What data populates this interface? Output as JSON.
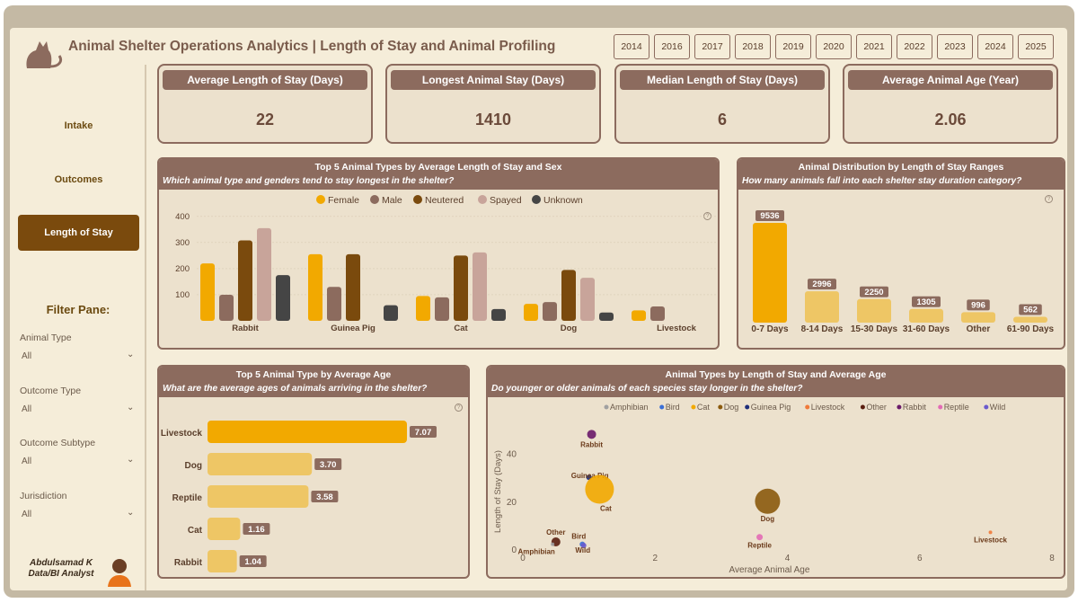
{
  "header": {
    "title": "Animal Shelter Operations Analytics | Length of Stay and Animal Profiling"
  },
  "years": [
    "2014",
    "2016",
    "2017",
    "2018",
    "2019",
    "2020",
    "2021",
    "2022",
    "2023",
    "2024",
    "2025"
  ],
  "nav": {
    "intake": "Intake",
    "outcomes": "Outcomes",
    "length_of_stay": "Length of Stay"
  },
  "filters": {
    "title": "Filter Pane:",
    "items": [
      {
        "label": "Animal Type",
        "value": "All"
      },
      {
        "label": "Outcome Type",
        "value": "All"
      },
      {
        "label": "Outcome Subtype",
        "value": "All"
      },
      {
        "label": "Jurisdiction",
        "value": "All"
      }
    ]
  },
  "author": {
    "name": "Abdulsamad K",
    "role": "Data/BI Analyst"
  },
  "kpis": [
    {
      "title": "Average Length of Stay (Days)",
      "value": "22"
    },
    {
      "title": "Longest Animal Stay (Days)",
      "value": "1410"
    },
    {
      "title": "Median Length of Stay (Days)",
      "value": "6"
    },
    {
      "title": "Average Animal Age (Year)",
      "value": "2.06"
    }
  ],
  "colors": {
    "female": "#f2a900",
    "male": "#8c6b5e",
    "neutered": "#7a4a0d",
    "spayed": "#c8a49a",
    "unknown": "#454545",
    "gold": "#f2a900",
    "light_gold": "#eec665",
    "header": "#8c6b5e"
  },
  "chart_data": [
    {
      "type": "bar",
      "title": "Top 5 Animal Types by Average Length of Stay and Sex",
      "subtitle": "Which animal type and genders tend to stay longest in the shelter?",
      "categories": [
        "Rabbit",
        "Guinea Pig",
        "Cat",
        "Dog",
        "Livestock"
      ],
      "series": [
        {
          "name": "Female",
          "values": [
            220,
            255,
            95,
            65,
            40
          ]
        },
        {
          "name": "Male",
          "values": [
            100,
            130,
            90,
            72,
            55
          ]
        },
        {
          "name": "Neutered",
          "values": [
            308,
            255,
            250,
            195,
            null
          ]
        },
        {
          "name": "Spayed",
          "values": [
            355,
            null,
            262,
            165,
            null
          ]
        },
        {
          "name": "Unknown",
          "values": [
            175,
            60,
            45,
            32,
            null
          ]
        }
      ],
      "yticks": [
        100,
        200,
        300,
        400
      ],
      "ylim": [
        0,
        420
      ]
    },
    {
      "type": "bar",
      "title": "Animal Distribution by Length of Stay Ranges",
      "subtitle": "How many animals fall into each shelter stay duration category?",
      "categories": [
        "0-7 Days",
        "8-14 Days",
        "15-30 Days",
        "31-60 Days",
        "Other",
        "61-90 Days"
      ],
      "values": [
        9536,
        2996,
        2250,
        1305,
        996,
        562
      ],
      "labels": [
        "9536",
        "2996",
        "2250",
        "1305",
        "996",
        "562"
      ],
      "ylim": [
        0,
        9536
      ]
    },
    {
      "type": "bar",
      "orientation": "horizontal",
      "title": "Top 5 Animal Type by Average Age",
      "subtitle": "What are the average ages of animals arriving in the shelter?",
      "categories": [
        "Livestock",
        "Dog",
        "Reptile",
        "Cat",
        "Rabbit"
      ],
      "values": [
        7.07,
        3.7,
        3.58,
        1.16,
        1.04
      ],
      "labels": [
        "7.07",
        "3.70",
        "3.58",
        "1.16",
        "1.04"
      ],
      "xlim": [
        0,
        7.07
      ]
    },
    {
      "type": "scatter",
      "title": "Animal Types by Length of Stay and Average Age",
      "subtitle": "Do younger or older animals of each species stay longer in the shelter?",
      "xlabel": "Average Animal Age",
      "ylabel": "Length of Stay (Days)",
      "xlim": [
        0,
        8
      ],
      "ylim": [
        0,
        50
      ],
      "xticks": [
        0,
        2,
        4,
        6,
        8
      ],
      "yticks": [
        0,
        20,
        40
      ],
      "legend": [
        "Amphibian",
        "Bird",
        "Cat",
        "Dog",
        "Guinea Pig",
        "Livestock",
        "Other",
        "Rabbit",
        "Reptile",
        "Wild"
      ],
      "legend_colors": [
        "#a0a0a0",
        "#3b6fd6",
        "#f2a900",
        "#8b5a0d",
        "#1e2d7a",
        "#f07a3a",
        "#5a1e0f",
        "#6a1a6a",
        "#e36bb5",
        "#6a5acd"
      ],
      "points": [
        {
          "name": "Rabbit",
          "x": 1.04,
          "y": 48,
          "size": 5,
          "color": "#6a1a6a"
        },
        {
          "name": "Guinea Pig",
          "x": 1.0,
          "y": 30,
          "size": 3,
          "color": "#1e2d7a"
        },
        {
          "name": "Cat",
          "x": 1.16,
          "y": 25,
          "size": 16,
          "color": "#f2a900"
        },
        {
          "name": "Dog",
          "x": 3.7,
          "y": 20,
          "size": 14,
          "color": "#8b5a0d"
        },
        {
          "name": "Reptile",
          "x": 3.58,
          "y": 5,
          "size": 3.5,
          "color": "#e36bb5"
        },
        {
          "name": "Livestock",
          "x": 7.07,
          "y": 7,
          "size": 2,
          "color": "#f07a3a"
        },
        {
          "name": "Other",
          "x": 0.5,
          "y": 3,
          "size": 5,
          "color": "#5a1e0f"
        },
        {
          "name": "Amphibian",
          "x": 0.45,
          "y": 2,
          "size": 2,
          "color": "#a0a0a0"
        },
        {
          "name": "Bird",
          "x": 0.9,
          "y": 2,
          "size": 3,
          "color": "#3b6fd6"
        },
        {
          "name": "Wild",
          "x": 0.92,
          "y": 1.5,
          "size": 3,
          "color": "#6a5acd"
        }
      ]
    }
  ]
}
